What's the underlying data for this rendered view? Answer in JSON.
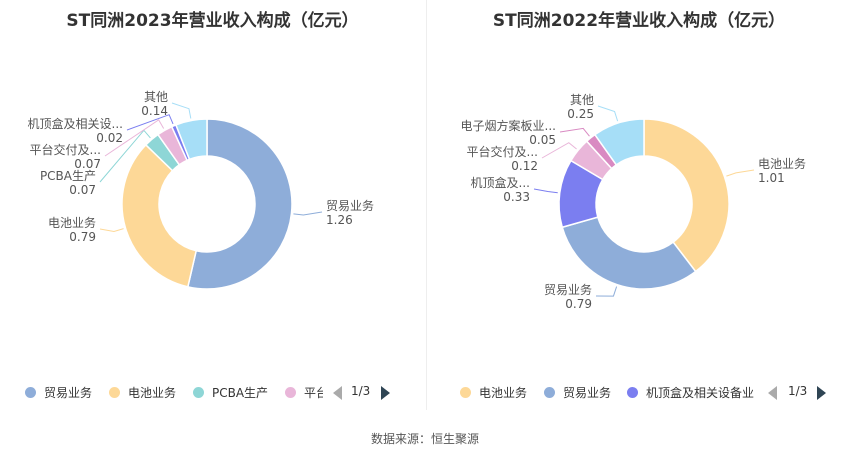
{
  "source_label": "数据来源：恒生聚源",
  "chart_data": [
    {
      "type": "pie",
      "title": "ST同洲2023年营业收入构成（亿元）",
      "slices": [
        {
          "label": "贸易业务",
          "display": "贸易业务",
          "value": 1.26,
          "value_text": "1.26",
          "color": "#8eadd9"
        },
        {
          "label": "电池业务",
          "display": "电池业务",
          "value": 0.79,
          "value_text": "0.79",
          "color": "#fdd897"
        },
        {
          "label": "PCBA生产",
          "display": "PCBA生产",
          "value": 0.07,
          "value_text": "0.07",
          "color": "#8ed6d6"
        },
        {
          "label": "平台交付及...",
          "display": "平台交付及...",
          "value": 0.07,
          "value_text": "0.07",
          "color": "#e9b6d9"
        },
        {
          "label": "机顶盒及相关设...",
          "display": "机顶盒及相关设...",
          "value": 0.02,
          "value_text": "0.02",
          "color": "#7b7ef0"
        },
        {
          "label": "其他",
          "display": "其他",
          "value": 0.14,
          "value_text": "0.14",
          "color": "#a6def7"
        }
      ],
      "legend": {
        "items": [
          {
            "label": "贸易业务",
            "color": "#8eadd9"
          },
          {
            "label": "电池业务",
            "color": "#fdd897"
          },
          {
            "label": "PCBA生产",
            "color": "#8ed6d6"
          },
          {
            "label": "平台",
            "color": "#e9b6d9"
          }
        ],
        "page": "1/3",
        "placement": "bottom"
      }
    },
    {
      "type": "pie",
      "title": "ST同洲2022年营业收入构成（亿元）",
      "slices": [
        {
          "label": "电池业务",
          "display": "电池业务",
          "value": 1.01,
          "value_text": "1.01",
          "color": "#fdd897"
        },
        {
          "label": "贸易业务",
          "display": "贸易业务",
          "value": 0.79,
          "value_text": "0.79",
          "color": "#8eadd9"
        },
        {
          "label": "机顶盒及...",
          "display": "机顶盒及...",
          "value": 0.33,
          "value_text": "0.33",
          "color": "#7b7ef0"
        },
        {
          "label": "平台交付及...",
          "display": "平台交付及...",
          "value": 0.12,
          "value_text": "0.12",
          "color": "#e9b6d9"
        },
        {
          "label": "电子烟方案板业...",
          "display": "电子烟方案板业...",
          "value": 0.05,
          "value_text": "0.05",
          "color": "#d98ac2"
        },
        {
          "label": "其他",
          "display": "其他",
          "value": 0.25,
          "value_text": "0.25",
          "color": "#a6def7"
        }
      ],
      "legend": {
        "items": [
          {
            "label": "电池业务",
            "color": "#fdd897"
          },
          {
            "label": "贸易业务",
            "color": "#8eadd9"
          },
          {
            "label": "机顶盒及相关设备业",
            "color": "#7b7ef0"
          }
        ],
        "page": "1/3",
        "placement": "bottom"
      }
    }
  ]
}
